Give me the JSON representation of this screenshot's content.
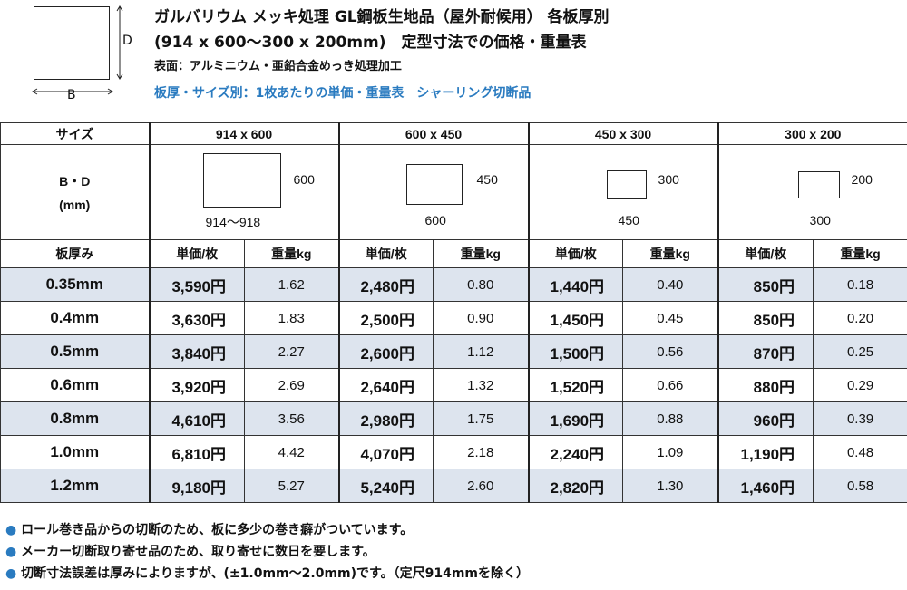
{
  "header": {
    "diagram_d": "D",
    "diagram_b": "B",
    "title_line1": "ガルバリウム メッキ処理 GL鋼板生地品（屋外耐候用） 各板厚別",
    "title_line2": "(914 x 600〜300 x 200mm)　定型寸法での価格・重量表",
    "surface": "表面：アルミニウム・亜鉛合金めっき処理加工",
    "subtitle": "板厚・サイズ別：1枚あたりの単価・重量表　シャーリング切断品",
    "accent_color": "#2a7bc0"
  },
  "table": {
    "size_label": "サイズ",
    "bd_label": "B・D",
    "bd_unit": "(mm)",
    "thickness_label": "板厚み",
    "unit_price_label": "単価/枚",
    "weight_label": "重量kg",
    "sizes": [
      {
        "name": "914 x 600",
        "b": "914〜918",
        "d": "600"
      },
      {
        "name": "600 x 450",
        "b": "600",
        "d": "450"
      },
      {
        "name": "450 x 300",
        "b": "450",
        "d": "300"
      },
      {
        "name": "300 x 200",
        "b": "300",
        "d": "200"
      }
    ],
    "rows": [
      {
        "thickness": "0.35mm",
        "cells": [
          [
            "3,590円",
            "1.62"
          ],
          [
            "2,480円",
            "0.80"
          ],
          [
            "1,440円",
            "0.40"
          ],
          [
            "850円",
            "0.18"
          ]
        ]
      },
      {
        "thickness": "0.4mm",
        "cells": [
          [
            "3,630円",
            "1.83"
          ],
          [
            "2,500円",
            "0.90"
          ],
          [
            "1,450円",
            "0.45"
          ],
          [
            "850円",
            "0.20"
          ]
        ]
      },
      {
        "thickness": "0.5mm",
        "cells": [
          [
            "3,840円",
            "2.27"
          ],
          [
            "2,600円",
            "1.12"
          ],
          [
            "1,500円",
            "0.56"
          ],
          [
            "870円",
            "0.25"
          ]
        ]
      },
      {
        "thickness": "0.6mm",
        "cells": [
          [
            "3,920円",
            "2.69"
          ],
          [
            "2,640円",
            "1.32"
          ],
          [
            "1,520円",
            "0.66"
          ],
          [
            "880円",
            "0.29"
          ]
        ]
      },
      {
        "thickness": "0.8mm",
        "cells": [
          [
            "4,610円",
            "3.56"
          ],
          [
            "2,980円",
            "1.75"
          ],
          [
            "1,690円",
            "0.88"
          ],
          [
            "960円",
            "0.39"
          ]
        ]
      },
      {
        "thickness": "1.0mm",
        "cells": [
          [
            "6,810円",
            "4.42"
          ],
          [
            "4,070円",
            "2.18"
          ],
          [
            "2,240円",
            "1.09"
          ],
          [
            "1,190円",
            "0.48"
          ]
        ]
      },
      {
        "thickness": "1.2mm",
        "cells": [
          [
            "9,180円",
            "5.27"
          ],
          [
            "5,240円",
            "2.60"
          ],
          [
            "2,820円",
            "1.30"
          ],
          [
            "1,460円",
            "0.58"
          ]
        ]
      }
    ],
    "shade_color": "#dde4ee"
  },
  "notes": [
    "ロール巻き品からの切断のため、板に多少の巻き癖がついています。",
    "メーカー切断取り寄せ品のため、取り寄せに数日を要します。",
    "切断寸法誤差は厚みによりますが、(±1.0mm〜2.0mm)です。（定尺914mmを除く）"
  ],
  "note_bullet": "●"
}
